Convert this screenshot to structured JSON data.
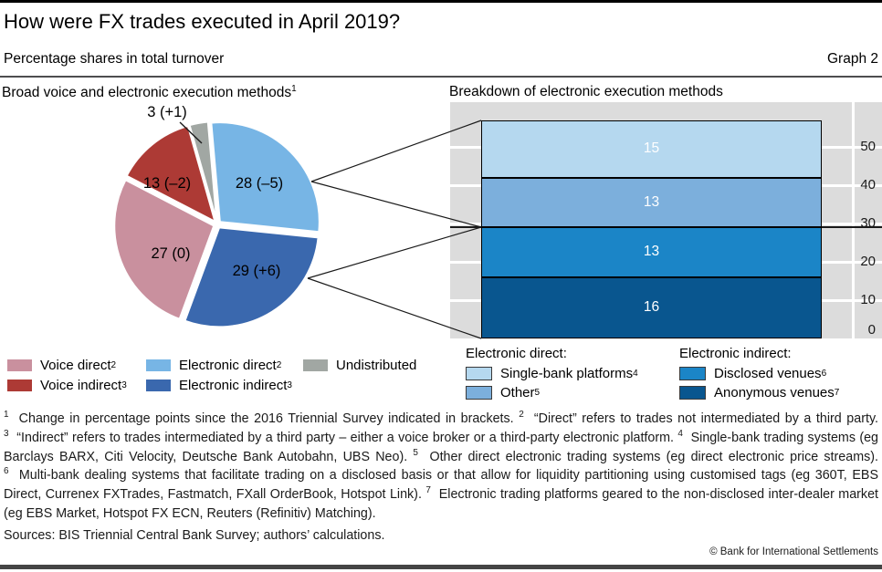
{
  "header": {
    "title": "How were FX trades executed in April 2019?",
    "subtitle": "Percentage shares in total turnover",
    "graph_label": "Graph 2"
  },
  "panels": {
    "left_title": "Broad voice and electronic execution methods",
    "left_title_sup": "1",
    "right_title": "Breakdown of electronic execution methods"
  },
  "chart_data": [
    {
      "type": "pie",
      "title": "Broad voice and electronic execution methods",
      "units": "% of total turnover",
      "slices": [
        {
          "label": "Electronic direct",
          "value": 28,
          "change": -5,
          "display": "28 (–5)",
          "color": "#77b5e5"
        },
        {
          "label": "Electronic indirect",
          "value": 29,
          "change": 6,
          "display": "29 (+6)",
          "color": "#3a68ae"
        },
        {
          "label": "Voice direct",
          "value": 27,
          "change": 0,
          "display": "27 (0)",
          "color": "#c9909e"
        },
        {
          "label": "Voice indirect",
          "value": 13,
          "change": -2,
          "display": "13 (–2)",
          "color": "#ad3a35"
        },
        {
          "label": "Undistributed",
          "value": 3,
          "change": 1,
          "display": "3 (+1)",
          "color": "#a1a7a3"
        }
      ]
    },
    {
      "type": "stacked-bar",
      "title": "Breakdown of electronic execution methods",
      "ylim": [
        0,
        61.7
      ],
      "yticks": [
        0,
        10,
        20,
        30,
        40,
        50
      ],
      "grid": true,
      "reference_line": 29,
      "segments_bottom_to_top": [
        {
          "label": "Anonymous venues",
          "value": 16,
          "color": "#09568f"
        },
        {
          "label": "Disclosed venues",
          "value": 13,
          "color": "#1b85c7"
        },
        {
          "label": "Other",
          "value": 13,
          "color": "#7cafdc"
        },
        {
          "label": "Single-bank platforms",
          "value": 15,
          "color": "#b5d8ef"
        }
      ]
    }
  ],
  "legend_pie": [
    {
      "label": "Voice direct",
      "sup": "2",
      "color": "#c9909e"
    },
    {
      "label": "Voice indirect",
      "sup": "3",
      "color": "#ad3a35"
    },
    {
      "label": "Electronic direct",
      "sup": "2",
      "color": "#77b5e5"
    },
    {
      "label": "Electronic indirect",
      "sup": "3",
      "color": "#3a68ae"
    },
    {
      "label": "Undistributed",
      "sup": "",
      "color": "#a1a7a3"
    }
  ],
  "legend_bar": {
    "groups": [
      {
        "header": "Electronic direct:",
        "items": [
          {
            "label": "Single-bank platforms",
            "sup": "4",
            "color": "#b5d8ef"
          },
          {
            "label": "Other",
            "sup": "5",
            "color": "#7cafdc"
          }
        ]
      },
      {
        "header": "Electronic indirect:",
        "items": [
          {
            "label": "Disclosed venues",
            "sup": "6",
            "color": "#1b85c7"
          },
          {
            "label": "Anonymous venues",
            "sup": "7",
            "color": "#09568f"
          }
        ]
      }
    ]
  },
  "footnotes": [
    {
      "marker": "1",
      "text": "Change in percentage points since the 2016 Triennial Survey indicated in brackets."
    },
    {
      "marker": "2",
      "text": "“Direct” refers to trades not intermediated by a third party."
    },
    {
      "marker": "3",
      "text": "“Indirect” refers to trades intermediated by a third party – either a voice broker or a third-party electronic platform."
    },
    {
      "marker": "4",
      "text": "Single-bank trading systems (eg Barclays BARX, Citi Velocity, Deutsche Bank Autobahn, UBS Neo)."
    },
    {
      "marker": "5",
      "text": "Other direct electronic trading systems (eg direct electronic price streams)."
    },
    {
      "marker": "6",
      "text": "Multi-bank dealing systems that facilitate trading on a disclosed basis or that allow for liquidity partitioning using customised tags (eg 360T, EBS Direct, Currenex FXTrades, Fastmatch, FXall OrderBook, Hotspot Link)."
    },
    {
      "marker": "7",
      "text": "Electronic trading platforms geared to the non-disclosed inter-dealer market (eg EBS Market, Hotspot FX ECN, Reuters (Refinitiv) Matching)."
    }
  ],
  "sources": "Sources: BIS Triennial Central Bank Survey; authors’ calculations.",
  "copyright": "© Bank for International Settlements",
  "colors": {
    "panel_bg": "#dcdcdc",
    "gridline": "#ffffff",
    "reference_line": "#1a1a1a",
    "bar_value_text": "#ffffff"
  }
}
